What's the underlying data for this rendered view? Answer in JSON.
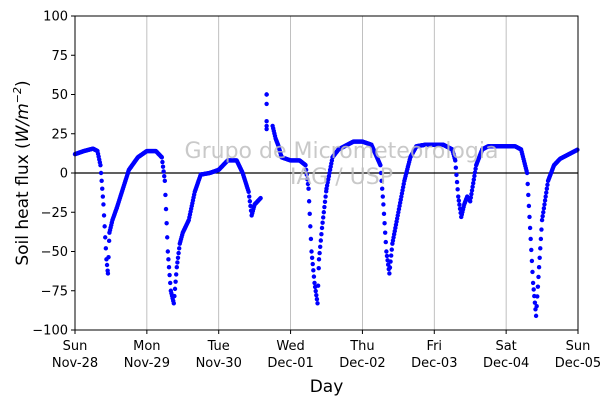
{
  "chart_data": {
    "type": "scatter",
    "xlabel": "Day",
    "ylabel_prefix": "Soil heat flux (",
    "ylabel_unit_main": "W/m",
    "ylabel_unit_sup": "−2",
    "ylabel_suffix": ")",
    "ylim": [
      -100,
      100
    ],
    "yticks": [
      -100,
      -75,
      -50,
      -25,
      0,
      25,
      50,
      75,
      100
    ],
    "xlim": [
      "2021-11-28 00:00",
      "2021-12-05 00:00"
    ],
    "xticks": [
      {
        "day": "Sun",
        "date": "Nov-28"
      },
      {
        "day": "Mon",
        "date": "Nov-29"
      },
      {
        "day": "Tue",
        "date": "Nov-30"
      },
      {
        "day": "Wed",
        "date": "Dec-01"
      },
      {
        "day": "Thu",
        "date": "Dec-02"
      },
      {
        "day": "Fri",
        "date": "Dec-03"
      },
      {
        "day": "Sat",
        "date": "Dec-04"
      },
      {
        "day": "Sun",
        "date": "Dec-05"
      }
    ],
    "grid": "vertical",
    "zero_line": true,
    "marker_color": "#0000ff",
    "watermark": [
      "Grupo de Micrometeorologia",
      "IAG / USP"
    ],
    "series": [
      {
        "x": [
          "2021-11-28 00:00",
          "2021-11-28 03:00",
          "2021-11-28 06:00",
          "2021-11-28 07:30",
          "2021-11-28 08:30",
          "2021-11-28 09:30",
          "2021-11-28 10:30",
          "2021-11-28 11:00",
          "2021-11-28 11:30",
          "2021-11-28 12:30",
          "2021-11-28 14:00",
          "2021-11-28 16:00",
          "2021-11-28 18:00",
          "2021-11-28 21:00",
          "2021-11-29 00:00",
          "2021-11-29 03:00",
          "2021-11-29 05:00",
          "2021-11-29 06:00",
          "2021-11-29 07:00",
          "2021-11-29 08:00",
          "2021-11-29 09:00",
          "2021-11-29 10:00",
          "2021-11-29 11:00",
          "2021-11-29 12:00",
          "2021-11-29 14:00",
          "2021-11-29 16:00",
          "2021-11-29 18:00",
          "2021-11-29 21:00",
          "2021-11-30 00:00",
          "2021-11-30 03:00",
          "2021-11-30 06:00",
          "2021-11-30 08:00",
          "2021-11-30 10:00",
          "2021-11-30 11:00",
          "2021-11-30 12:00",
          "2021-11-30 14:00",
          "2021-11-30 16:00",
          "2021-11-30 18:00",
          "2021-11-30 19:00",
          "2021-11-30 20:00",
          "2021-11-30 21:00",
          "2021-12-01 00:00",
          "2021-12-01 03:00",
          "2021-12-01 05:00",
          "2021-12-01 06:00",
          "2021-12-01 07:00",
          "2021-12-01 08:00",
          "2021-12-01 09:00",
          "2021-12-01 09:30",
          "2021-12-01 10:30",
          "2021-12-01 12:00",
          "2021-12-01 14:00",
          "2021-12-01 16:00",
          "2021-12-01 18:00",
          "2021-12-01 21:00",
          "2021-12-02 00:00",
          "2021-12-02 03:00",
          "2021-12-02 06:00",
          "2021-12-02 07:00",
          "2021-12-02 08:00",
          "2021-12-02 09:00",
          "2021-12-02 10:00",
          "2021-12-02 11:00",
          "2021-12-02 12:00",
          "2021-12-02 14:00",
          "2021-12-02 16:00",
          "2021-12-02 18:00",
          "2021-12-02 21:00",
          "2021-12-03 00:00",
          "2021-12-03 03:00",
          "2021-12-03 06:00",
          "2021-12-03 07:00",
          "2021-12-03 08:00",
          "2021-12-03 09:00",
          "2021-12-03 10:00",
          "2021-12-03 11:00",
          "2021-12-03 12:00",
          "2021-12-03 14:00",
          "2021-12-03 16:00",
          "2021-12-03 18:00",
          "2021-12-03 21:00",
          "2021-12-04 00:00",
          "2021-12-04 03:00",
          "2021-12-04 05:00",
          "2021-12-04 07:00",
          "2021-12-04 08:00",
          "2021-12-04 09:00",
          "2021-12-04 10:00",
          "2021-12-04 11:00",
          "2021-12-04 12:00",
          "2021-12-04 14:00",
          "2021-12-04 16:00",
          "2021-12-04 18:00",
          "2021-12-04 21:00",
          "2021-12-05 00:00"
        ],
        "y": [
          12,
          14,
          15.5,
          14,
          5,
          -20,
          -55,
          -64,
          -38,
          -30,
          -22,
          -10,
          2,
          10,
          14,
          14,
          10,
          -5,
          -50,
          -75,
          -83,
          -60,
          -45,
          -38,
          -30,
          -12,
          -1,
          0,
          2,
          8,
          8,
          0,
          -12,
          -27,
          -20,
          -16,
          50,
          30,
          22,
          17,
          10,
          8,
          8,
          5,
          -10,
          -50,
          -70,
          -83,
          -55,
          -35,
          -10,
          10,
          15,
          17,
          20,
          20,
          18,
          5,
          -20,
          -50,
          -64,
          -45,
          -35,
          -25,
          -5,
          10,
          17,
          18,
          18,
          18,
          15,
          8,
          -15,
          -28,
          -20,
          -15,
          -18,
          5,
          15,
          17,
          17,
          17,
          17,
          15,
          0,
          -35,
          -70,
          -91,
          -60,
          -30,
          -5,
          5,
          9,
          12,
          15
        ]
      }
    ]
  }
}
